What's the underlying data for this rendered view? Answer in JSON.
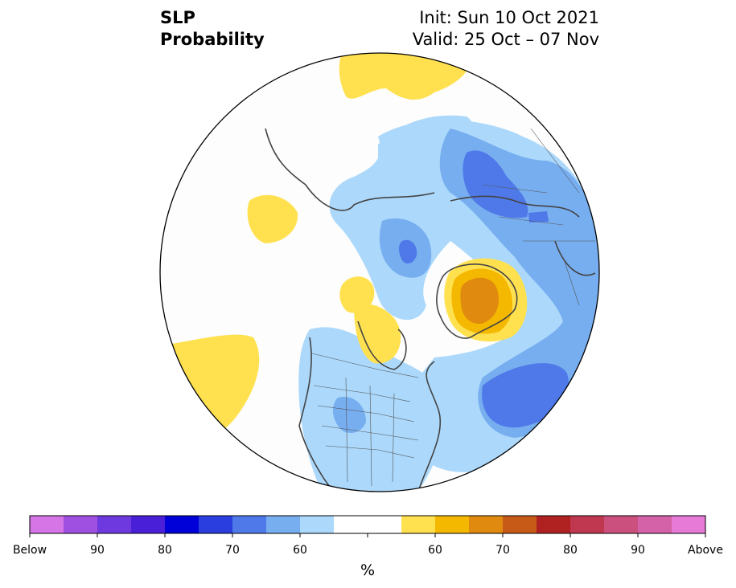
{
  "title": {
    "left_line1": "SLP",
    "left_line2": "Probability",
    "right_line1": "Init: Sun 10 Oct 2021",
    "right_line2": "Valid: 25 Oct – 07 Nov"
  },
  "colorbar": {
    "unit": "%",
    "colors": [
      "#d575e6",
      "#a050e0",
      "#6e3ae0",
      "#4a1fd8",
      "#0000d8",
      "#2a3ee0",
      "#4f79e8",
      "#77aef0",
      "#abd8fb",
      "#ffffff",
      "#ffffff",
      "#ffe150",
      "#f4b800",
      "#e08a10",
      "#c85a18",
      "#b02222",
      "#c03850",
      "#cc507e",
      "#d462a8",
      "#e67ad6"
    ],
    "tick_labels": [
      {
        "text": "Below",
        "slot": 0
      },
      {
        "text": "90",
        "slot": 2
      },
      {
        "text": "80",
        "slot": 4
      },
      {
        "text": "70",
        "slot": 6
      },
      {
        "text": "60",
        "slot": 8
      },
      {
        "text": "60",
        "slot": 12
      },
      {
        "text": "70",
        "slot": 14
      },
      {
        "text": "80",
        "slot": 16
      },
      {
        "text": "90",
        "slot": 18
      },
      {
        "text": "Above",
        "slot": 20
      }
    ]
  },
  "map": {
    "projection": "north-polar-stereographic",
    "fill_colors": {
      "light_blue": "#abd8fb",
      "mid_blue": "#77aef0",
      "blue": "#4f79e8",
      "yellow": "#ffe150",
      "gold": "#f4b800",
      "orange": "#e08a10",
      "land_outline": "#444444"
    }
  }
}
